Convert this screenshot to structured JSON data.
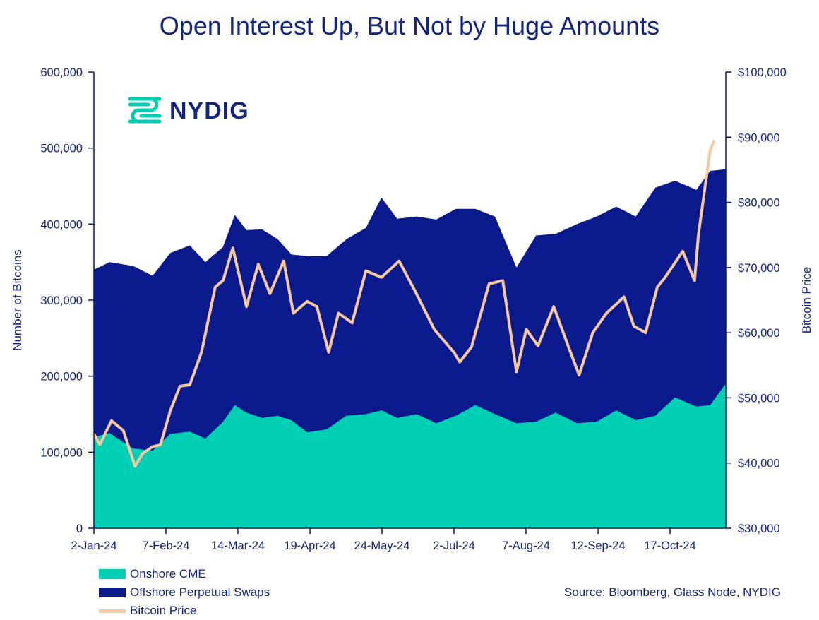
{
  "title": "Open Interest Up, But Not by Huge Amounts",
  "logo_text": "NYDIG",
  "source": "Source: Bloomberg, Glass Node, NYDIG",
  "colors": {
    "cme": "#00cfb4",
    "perp": "#0a1a8c",
    "price": "#f7c9a2",
    "text": "#14247a"
  },
  "chart_data": {
    "type": "area",
    "x_tick_labels": [
      "2-Jan-24",
      "7-Feb-24",
      "14-Mar-24",
      "19-Apr-24",
      "24-May-24",
      "2-Jul-24",
      "7-Aug-24",
      "12-Sep-24",
      "17-Oct-24"
    ],
    "y_tick_labels": [
      "0",
      "100,000",
      "200,000",
      "300,000",
      "400,000",
      "500,000",
      "600,000"
    ],
    "y2_tick_labels": [
      "$30,000",
      "$40,000",
      "$50,000",
      "$60,000",
      "$70,000",
      "$80,000",
      "$90,000",
      "$100,000"
    ],
    "ylabel": "Number of Bitcoins",
    "y2label": "Bitcoin Price",
    "ylim": [
      0,
      600000
    ],
    "y2lim": [
      30000,
      100000
    ],
    "legend": [
      "Onshore CME",
      "Offshore Perpetual Swaps",
      "Bitcoin Price"
    ],
    "series": [
      {
        "name": "Onshore CME",
        "points": [
          [
            "2024-01-02",
            120000
          ],
          [
            "2024-01-10",
            125000
          ],
          [
            "2024-01-22",
            105000
          ],
          [
            "2024-02-01",
            102000
          ],
          [
            "2024-02-10",
            124000
          ],
          [
            "2024-02-20",
            127000
          ],
          [
            "2024-02-28",
            118000
          ],
          [
            "2024-03-08",
            140000
          ],
          [
            "2024-03-14",
            162000
          ],
          [
            "2024-03-20",
            152000
          ],
          [
            "2024-03-28",
            145000
          ],
          [
            "2024-04-05",
            148000
          ],
          [
            "2024-04-12",
            142000
          ],
          [
            "2024-04-20",
            126000
          ],
          [
            "2024-04-30",
            130000
          ],
          [
            "2024-05-10",
            148000
          ],
          [
            "2024-05-20",
            150000
          ],
          [
            "2024-05-28",
            155000
          ],
          [
            "2024-06-05",
            145000
          ],
          [
            "2024-06-15",
            150000
          ],
          [
            "2024-06-25",
            138000
          ],
          [
            "2024-07-05",
            148000
          ],
          [
            "2024-07-15",
            162000
          ],
          [
            "2024-07-25",
            150000
          ],
          [
            "2024-08-05",
            138000
          ],
          [
            "2024-08-15",
            140000
          ],
          [
            "2024-08-25",
            152000
          ],
          [
            "2024-09-05",
            138000
          ],
          [
            "2024-09-15",
            140000
          ],
          [
            "2024-09-25",
            155000
          ],
          [
            "2024-10-05",
            142000
          ],
          [
            "2024-10-15",
            148000
          ],
          [
            "2024-10-25",
            172000
          ],
          [
            "2024-11-05",
            160000
          ],
          [
            "2024-11-12",
            162000
          ],
          [
            "2024-11-20",
            190000
          ]
        ]
      },
      {
        "name": "Offshore Perpetual Swaps",
        "points": [
          [
            "2024-01-02",
            220000
          ],
          [
            "2024-01-10",
            225000
          ],
          [
            "2024-01-22",
            240000
          ],
          [
            "2024-02-01",
            230000
          ],
          [
            "2024-02-10",
            238000
          ],
          [
            "2024-02-20",
            245000
          ],
          [
            "2024-02-28",
            232000
          ],
          [
            "2024-03-08",
            230000
          ],
          [
            "2024-03-14",
            250000
          ],
          [
            "2024-03-20",
            240000
          ],
          [
            "2024-03-28",
            248000
          ],
          [
            "2024-04-05",
            232000
          ],
          [
            "2024-04-12",
            218000
          ],
          [
            "2024-04-20",
            232000
          ],
          [
            "2024-04-30",
            228000
          ],
          [
            "2024-05-10",
            232000
          ],
          [
            "2024-05-20",
            245000
          ],
          [
            "2024-05-28",
            280000
          ],
          [
            "2024-06-05",
            262000
          ],
          [
            "2024-06-15",
            260000
          ],
          [
            "2024-06-25",
            268000
          ],
          [
            "2024-07-05",
            272000
          ],
          [
            "2024-07-15",
            258000
          ],
          [
            "2024-07-25",
            260000
          ],
          [
            "2024-08-05",
            205000
          ],
          [
            "2024-08-15",
            245000
          ],
          [
            "2024-08-25",
            235000
          ],
          [
            "2024-09-05",
            262000
          ],
          [
            "2024-09-15",
            270000
          ],
          [
            "2024-09-25",
            268000
          ],
          [
            "2024-10-05",
            268000
          ],
          [
            "2024-10-15",
            300000
          ],
          [
            "2024-10-25",
            285000
          ],
          [
            "2024-11-05",
            285000
          ],
          [
            "2024-11-12",
            308000
          ],
          [
            "2024-11-20",
            282000
          ]
        ]
      },
      {
        "name": "Bitcoin Price",
        "points": [
          [
            "2024-01-02",
            44500
          ],
          [
            "2024-01-05",
            42800
          ],
          [
            "2024-01-11",
            46500
          ],
          [
            "2024-01-17",
            45000
          ],
          [
            "2024-01-23",
            39500
          ],
          [
            "2024-01-27",
            41500
          ],
          [
            "2024-02-01",
            42500
          ],
          [
            "2024-02-05",
            42800
          ],
          [
            "2024-02-10",
            48000
          ],
          [
            "2024-02-15",
            51800
          ],
          [
            "2024-02-20",
            52000
          ],
          [
            "2024-02-26",
            57000
          ],
          [
            "2024-03-04",
            67000
          ],
          [
            "2024-03-08",
            68000
          ],
          [
            "2024-03-13",
            73000
          ],
          [
            "2024-03-20",
            64000
          ],
          [
            "2024-03-26",
            70500
          ],
          [
            "2024-04-01",
            66000
          ],
          [
            "2024-04-08",
            71000
          ],
          [
            "2024-04-13",
            63000
          ],
          [
            "2024-04-20",
            64800
          ],
          [
            "2024-04-25",
            64000
          ],
          [
            "2024-05-01",
            57000
          ],
          [
            "2024-05-06",
            63000
          ],
          [
            "2024-05-13",
            61500
          ],
          [
            "2024-05-20",
            69500
          ],
          [
            "2024-05-28",
            68500
          ],
          [
            "2024-06-06",
            71000
          ],
          [
            "2024-06-14",
            66500
          ],
          [
            "2024-06-24",
            60500
          ],
          [
            "2024-07-04",
            57000
          ],
          [
            "2024-07-07",
            55500
          ],
          [
            "2024-07-13",
            57800
          ],
          [
            "2024-07-22",
            67500
          ],
          [
            "2024-07-29",
            68000
          ],
          [
            "2024-08-05",
            54000
          ],
          [
            "2024-08-10",
            60500
          ],
          [
            "2024-08-16",
            58000
          ],
          [
            "2024-08-24",
            64000
          ],
          [
            "2024-09-01",
            57500
          ],
          [
            "2024-09-06",
            53500
          ],
          [
            "2024-09-13",
            60000
          ],
          [
            "2024-09-20",
            63000
          ],
          [
            "2024-09-29",
            65500
          ],
          [
            "2024-10-04",
            61000
          ],
          [
            "2024-10-10",
            60000
          ],
          [
            "2024-10-16",
            67000
          ],
          [
            "2024-10-20",
            68500
          ],
          [
            "2024-10-29",
            72500
          ],
          [
            "2024-11-04",
            68000
          ],
          [
            "2024-11-06",
            75000
          ],
          [
            "2024-11-12",
            88000
          ],
          [
            "2024-11-14",
            89500
          ]
        ]
      }
    ]
  }
}
